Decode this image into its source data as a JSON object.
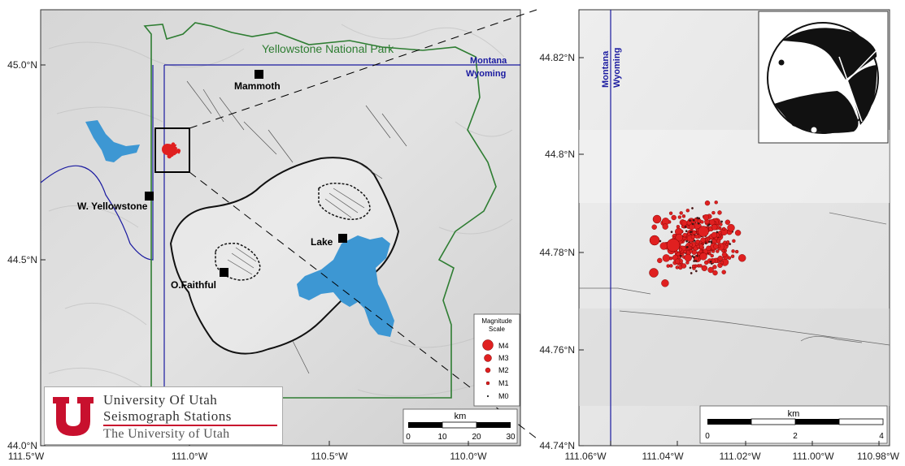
{
  "left_map": {
    "park_label": "Yellowstone National Park",
    "state_labels": [
      "Montana",
      "Wyoming"
    ],
    "towns": [
      "Mammoth",
      "W. Yellowstone",
      "Lake",
      "O.Faithful"
    ],
    "lon_ticks": [
      "111.5°W",
      "111.0°W",
      "110.5°W",
      "110.0°W"
    ],
    "lat_ticks": [
      "45.0°N",
      "44.5°N",
      "44.0°N"
    ],
    "scale_bar": {
      "title": "km",
      "ticks": [
        "0",
        "10",
        "20",
        "30"
      ]
    },
    "magnitude_legend": {
      "title_line1": "Magnitude",
      "title_line2": "Scale",
      "items": [
        "M4",
        "M3",
        "M2",
        "M1",
        "M0"
      ]
    }
  },
  "right_map": {
    "state_labels": [
      "Montana",
      "Wyoming"
    ],
    "lon_ticks": [
      "111.06°W",
      "111.04°W",
      "111.02°W",
      "111.00°W",
      "110.98°W"
    ],
    "lat_ticks": [
      "44.82°N",
      "44.8°N",
      "44.78°N",
      "44.76°N",
      "44.74°N"
    ],
    "scale_bar": {
      "title": "km",
      "ticks": [
        "0",
        "2",
        "4"
      ]
    }
  },
  "logo": {
    "line1": "University Of Utah",
    "line2": "Seismograph Stations",
    "line3": "The University of Utah"
  },
  "colors": {
    "park_boundary": "#2e7d32",
    "state_line": "#1a1aa0",
    "lake": "#3d97d3",
    "quake": "#e02020",
    "logo_red": "#c8102e"
  }
}
